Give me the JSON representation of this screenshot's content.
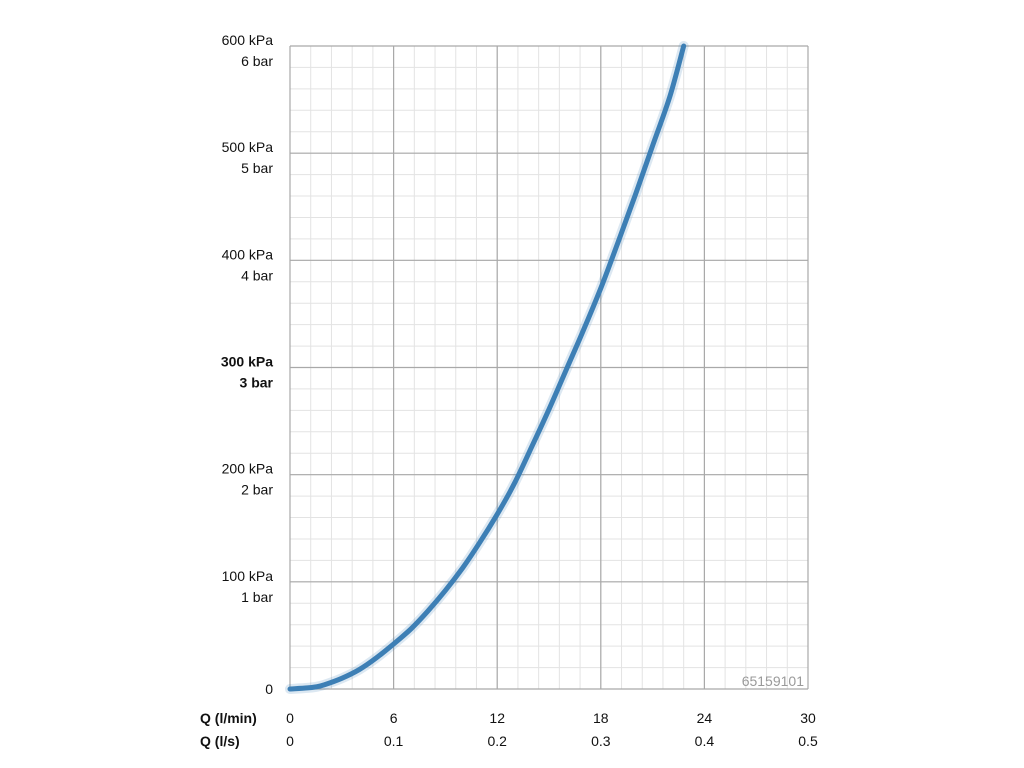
{
  "chart_data": {
    "type": "line",
    "code_label": "65159101",
    "x_axis": {
      "name_primary": "Q (l/min)",
      "name_secondary": "Q (l/s)",
      "range": [
        0,
        30
      ],
      "ticks_primary": [
        "0",
        "6",
        "12",
        "18",
        "24",
        "30"
      ],
      "ticks_secondary": [
        "0",
        "0.1",
        "0.2",
        "0.3",
        "0.4",
        "0.5"
      ],
      "tick_values": [
        0,
        6,
        12,
        18,
        24,
        30
      ]
    },
    "y_axis": {
      "range": [
        0,
        600
      ],
      "ticks": [
        {
          "value": 0,
          "kpa": "0",
          "bar": "",
          "bold": false
        },
        {
          "value": 100,
          "kpa": "100 kPa",
          "bar": "1 bar",
          "bold": false
        },
        {
          "value": 200,
          "kpa": "200 kPa",
          "bar": "2 bar",
          "bold": false
        },
        {
          "value": 300,
          "kpa": "300 kPa",
          "bar": "3 bar",
          "bold": true
        },
        {
          "value": 400,
          "kpa": "400 kPa",
          "bar": "4 bar",
          "bold": false
        },
        {
          "value": 500,
          "kpa": "500 kPa",
          "bar": "5 bar",
          "bold": false
        },
        {
          "value": 600,
          "kpa": "600 kPa",
          "bar": "6 bar",
          "bold": false
        }
      ]
    },
    "grid": {
      "major": true,
      "minor_per_major_x": 5,
      "minor_per_major_y": 5
    },
    "series": [
      {
        "color": "#3d7fb5",
        "points": [
          [
            0,
            0
          ],
          [
            1,
            1
          ],
          [
            1.5,
            2
          ],
          [
            2,
            4
          ],
          [
            3,
            10
          ],
          [
            4,
            18
          ],
          [
            5,
            29
          ],
          [
            6,
            42
          ],
          [
            7,
            56
          ],
          [
            8,
            73
          ],
          [
            9,
            92
          ],
          [
            10,
            113
          ],
          [
            11,
            137
          ],
          [
            12,
            163
          ],
          [
            13,
            192
          ],
          [
            14,
            226
          ],
          [
            15,
            261
          ],
          [
            16,
            298
          ],
          [
            17,
            335
          ],
          [
            18,
            374
          ],
          [
            19,
            417
          ],
          [
            20,
            461
          ],
          [
            21,
            507
          ],
          [
            22,
            553
          ],
          [
            22.8,
            600
          ]
        ]
      }
    ]
  }
}
